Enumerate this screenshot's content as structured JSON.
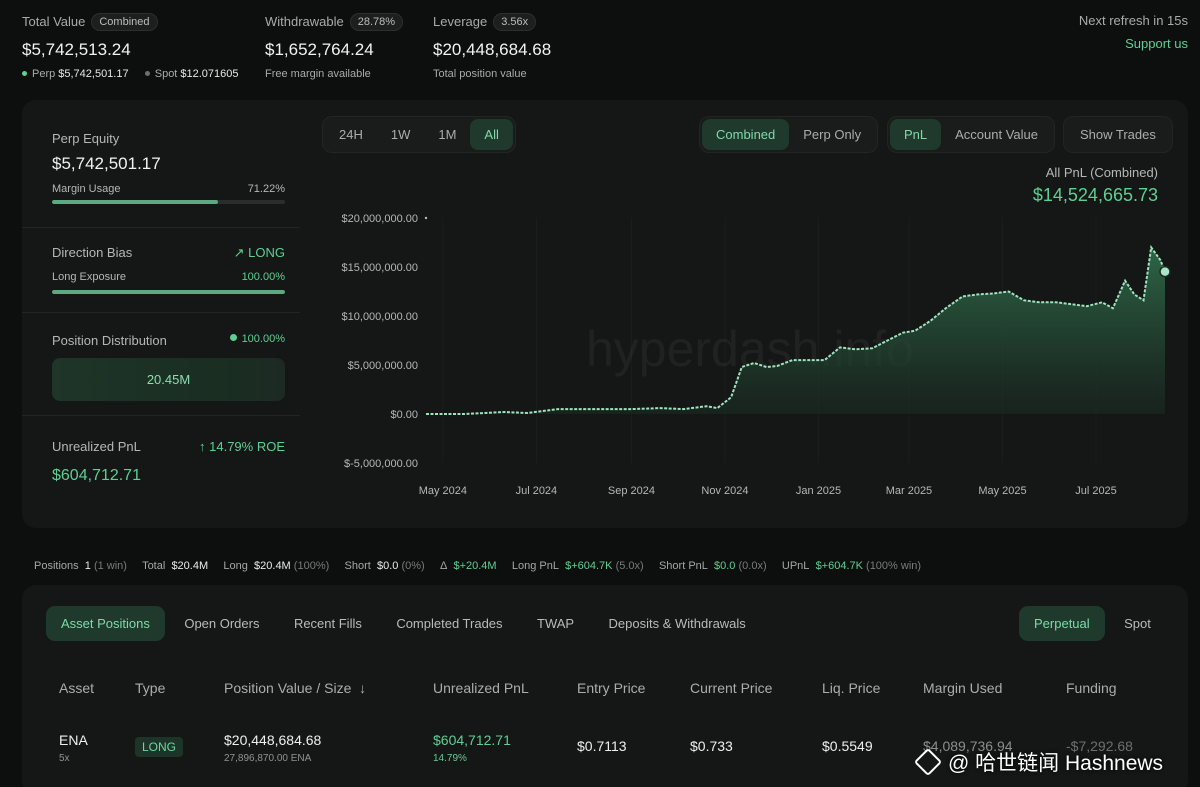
{
  "header": {
    "total_value": {
      "label": "Total Value",
      "badge": "Combined",
      "value": "$5,742,513.24",
      "perp_label": "Perp",
      "perp_value": "$5,742,501.17",
      "spot_label": "Spot",
      "spot_value": "$12.071605"
    },
    "withdrawable": {
      "label": "Withdrawable",
      "badge": "28.78%",
      "value": "$1,652,764.24",
      "sub": "Free margin available"
    },
    "leverage": {
      "label": "Leverage",
      "badge": "3.56x",
      "value": "$20,448,684.68",
      "sub": "Total position value"
    },
    "refresh": "Next refresh in 15s",
    "support": "Support us"
  },
  "left_panel": {
    "perp_equity_label": "Perp Equity",
    "perp_equity_value": "$5,742,501.17",
    "margin_usage_label": "Margin Usage",
    "margin_usage_value": "71.22%",
    "margin_usage_fraction": 0.7122,
    "direction_bias_label": "Direction Bias",
    "direction_bias_value": "LONG",
    "long_exposure_label": "Long Exposure",
    "long_exposure_value": "100.00%",
    "long_exposure_fraction": 1.0,
    "position_distribution_label": "Position Distribution",
    "position_distribution_value": "100.00%",
    "distribution_bar_value": "20.45M",
    "unrealized_pnl_label": "Unrealized PnL",
    "unrealized_roe": "14.79% ROE",
    "unrealized_pnl_value": "$604,712.71"
  },
  "chart_controls": {
    "ranges": [
      "24H",
      "1W",
      "1M",
      "All"
    ],
    "active_range": "All",
    "modes": [
      "Combined",
      "Perp Only"
    ],
    "active_mode": "Combined",
    "metrics": [
      "PnL",
      "Account Value"
    ],
    "active_metric": "PnL",
    "show_trades": "Show Trades"
  },
  "chart_info": {
    "title": "All PnL (Combined)",
    "value": "$14,524,665.73",
    "watermark": "hyperdash.info"
  },
  "chart_data": {
    "type": "area",
    "title": "",
    "xlabel": "",
    "ylabel": "",
    "x_ticks": [
      "May 2024",
      "Jul 2024",
      "Sep 2024",
      "Nov 2024",
      "Jan 2025",
      "Mar 2025",
      "May 2025",
      "Jul 2025"
    ],
    "y_ticks": [
      "$20,000,000.00",
      "$15,000,000.00",
      "$10,000,000.00",
      "$5,000,000.00",
      "$0.00",
      "$-5,000,000.00"
    ],
    "ylim": [
      -5000000,
      20000000
    ],
    "xlim": [
      "2024-04-20",
      "2025-08-15"
    ],
    "series": [
      {
        "x": [
          "2024-04-20",
          "2024-05-15",
          "2024-06-10",
          "2024-06-25",
          "2024-07-15",
          "2024-07-25",
          "2024-08-10",
          "2024-09-01",
          "2024-09-20",
          "2024-10-05",
          "2024-10-20",
          "2024-10-27",
          "2024-11-05",
          "2024-11-12",
          "2024-11-20",
          "2024-11-28",
          "2024-12-05",
          "2024-12-15",
          "2024-12-25",
          "2025-01-05",
          "2025-01-15",
          "2025-01-25",
          "2025-02-05",
          "2025-02-15",
          "2025-02-25",
          "2025-03-05",
          "2025-03-15",
          "2025-03-25",
          "2025-04-05",
          "2025-04-15",
          "2025-04-25",
          "2025-05-05",
          "2025-05-15",
          "2025-05-25",
          "2025-06-05",
          "2025-06-15",
          "2025-06-25",
          "2025-07-05",
          "2025-07-12",
          "2025-07-20",
          "2025-07-26",
          "2025-08-01",
          "2025-08-06",
          "2025-08-12",
          "2025-08-15"
        ],
        "values": [
          0,
          0,
          200000,
          100000,
          500000,
          500000,
          500000,
          500000,
          600000,
          500000,
          800000,
          600000,
          1700000,
          4800000,
          5200000,
          4800000,
          4900000,
          5500000,
          5500000,
          5500000,
          6800000,
          6600000,
          6700000,
          7500000,
          8300000,
          8500000,
          9500000,
          10800000,
          12000000,
          12200000,
          12300000,
          12500000,
          11600000,
          11400000,
          11400000,
          11200000,
          11000000,
          11400000,
          10800000,
          13600000,
          12200000,
          11600000,
          17000000,
          15700000,
          14524665
        ]
      }
    ]
  },
  "summary_bar": {
    "positions_label": "Positions",
    "positions_value": "1",
    "positions_note": "(1 win)",
    "total_label": "Total",
    "total_value": "$20.4M",
    "long_label": "Long",
    "long_value": "$20.4M",
    "long_note": "(100%)",
    "short_label": "Short",
    "short_value": "$0.0",
    "short_note": "(0%)",
    "delta_label": "Δ",
    "delta_value": "$+20.4M",
    "long_pnl_label": "Long PnL",
    "long_pnl_value": "$+604.7K",
    "long_pnl_note": "(5.0x)",
    "short_pnl_label": "Short PnL",
    "short_pnl_value": "$0.0",
    "short_pnl_note": "(0.0x)",
    "upnl_label": "UPnL",
    "upnl_value": "$+604.7K",
    "upnl_note": "(100% win)"
  },
  "position_tabs": [
    "Asset Positions",
    "Open Orders",
    "Recent Fills",
    "Completed Trades",
    "TWAP",
    "Deposits & Withdrawals"
  ],
  "market_tabs": [
    "Perpetual",
    "Spot"
  ],
  "table": {
    "headers": [
      "Asset",
      "Type",
      "Position Value / Size",
      "Unrealized PnL",
      "Entry Price",
      "Current Price",
      "Liq. Price",
      "Margin Used",
      "Funding"
    ],
    "sort_arrow": "↓",
    "row": {
      "asset": "ENA",
      "leverage": "5x",
      "type": "LONG",
      "position_value": "$20,448,684.68",
      "position_size": "27,896,870.00 ENA",
      "upnl": "$604,712.71",
      "upnl_pct": "14.79%",
      "entry": "$0.7113",
      "current": "$0.733",
      "liq": "$0.5549",
      "margin": "$4,089,736.94",
      "funding": "-$7,292.68"
    }
  },
  "footer_watermark": "@ 哈世链闻 Hashnews",
  "colors": {
    "accent": "#5fcf93",
    "background": "#0d0e0e",
    "panel": "#151616"
  }
}
